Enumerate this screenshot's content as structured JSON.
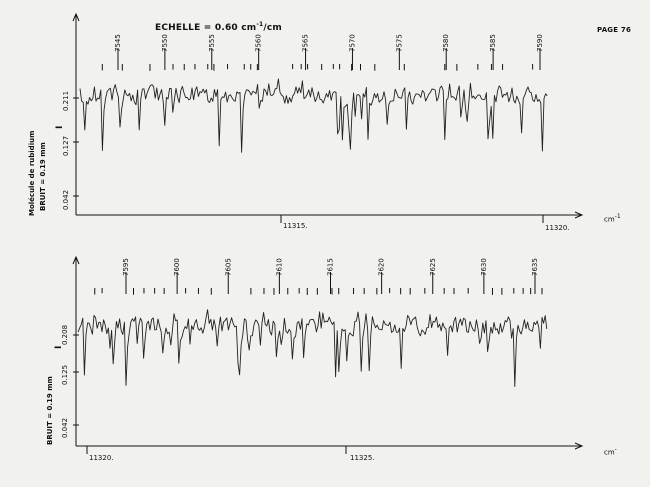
{
  "header": {
    "scale_prefix": "ECHELLE = 0.60 cm",
    "scale_exp": "-1",
    "scale_suffix": "/cm",
    "page_label": "PAGE 76"
  },
  "top_panel": {
    "side_title": "Molécule de rubidium",
    "noise": "BRUIT = 0.19 mm",
    "intensity_symbol": "I",
    "yticks": [
      "0.211",
      "0.127",
      "0.042"
    ],
    "line_labels": [
      "7545",
      "7550",
      "7555",
      "7560",
      "7565",
      "7570",
      "7575",
      "7580",
      "7585",
      "7590"
    ],
    "x_labels": [
      "11315.",
      "11320."
    ],
    "unit": "cm",
    "unit_exp": "-1"
  },
  "bottom_panel": {
    "noise": "BRUIT = 0.19 mm",
    "intensity_symbol": "I",
    "yticks": [
      "0.208",
      "0.125",
      "0.042"
    ],
    "line_labels": [
      "7595",
      "7600",
      "7605",
      "7610",
      "7615",
      "7620",
      "7625",
      "7630",
      "7635"
    ],
    "x_labels": [
      "11320.",
      "11325."
    ],
    "unit": "cm",
    "unit_exp": "-"
  }
}
